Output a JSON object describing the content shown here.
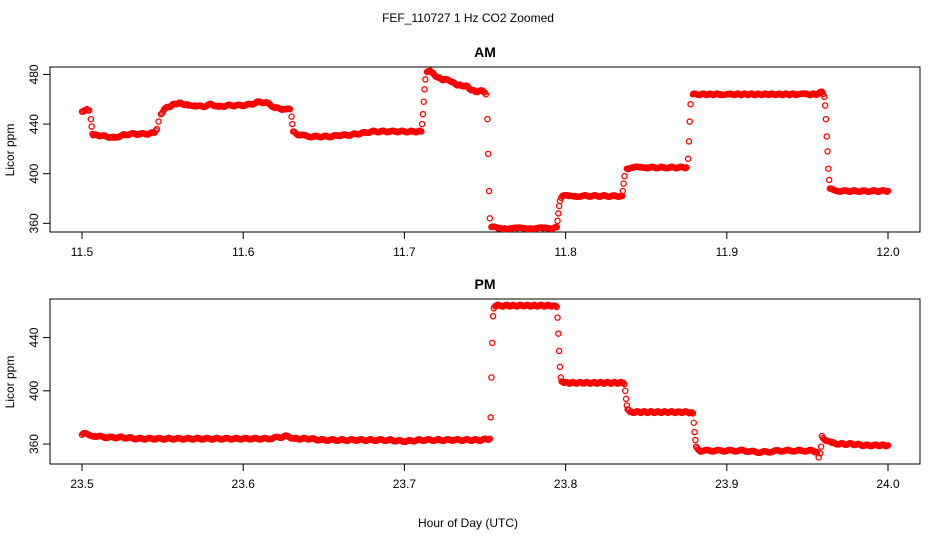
{
  "figure": {
    "title": "FEF_110727  1 Hz CO2 Zoomed",
    "xlabel": "Hour of Day (UTC)"
  },
  "chart_data": [
    {
      "type": "scatter",
      "title": "AM",
      "ylabel": "Licor ppm",
      "xlim": [
        11.5,
        12.0
      ],
      "ylim": [
        353,
        486
      ],
      "xticks": [
        11.5,
        11.6,
        11.7,
        11.8,
        11.9,
        12.0
      ],
      "xtick_labels": [
        "11.5",
        "11.6",
        "11.7",
        "11.8",
        "11.9",
        "12.0"
      ],
      "yticks": [
        360,
        400,
        440,
        480
      ],
      "ytick_labels": [
        "360",
        "400",
        "440",
        "480"
      ],
      "grid": false,
      "legend": "none",
      "marker": "open-circle",
      "series": [
        {
          "color": "#ff0000",
          "points": [
            [
              11.5,
              450
            ],
            [
              11.5015,
              451
            ],
            [
              11.503,
              452
            ],
            [
              11.5045,
              451
            ],
            [
              11.5055,
              444
            ],
            [
              11.506,
              438
            ],
            [
              11.5065,
              432
            ],
            [
              11.507,
              431
            ],
            [
              11.51,
              431
            ],
            [
              11.515,
              430
            ],
            [
              11.52,
              429
            ],
            [
              11.525,
              431
            ],
            [
              11.53,
              432
            ],
            [
              11.535,
              432
            ],
            [
              11.54,
              432
            ],
            [
              11.545,
              433
            ],
            [
              11.5465,
              436
            ],
            [
              11.5475,
              442
            ],
            [
              11.549,
              448
            ],
            [
              11.551,
              452
            ],
            [
              11.554,
              454
            ],
            [
              11.557,
              456
            ],
            [
              11.56,
              457
            ],
            [
              11.563,
              456
            ],
            [
              11.566,
              455
            ],
            [
              11.57,
              455
            ],
            [
              11.575,
              454
            ],
            [
              11.58,
              456
            ],
            [
              11.585,
              454
            ],
            [
              11.59,
              455
            ],
            [
              11.595,
              455
            ],
            [
              11.6,
              455
            ],
            [
              11.605,
              456
            ],
            [
              11.61,
              458
            ],
            [
              11.615,
              457
            ],
            [
              11.62,
              453
            ],
            [
              11.625,
              452
            ],
            [
              11.629,
              452
            ],
            [
              11.63,
              446
            ],
            [
              11.6305,
              440
            ],
            [
              11.631,
              434
            ],
            [
              11.633,
              432
            ],
            [
              11.636,
              431
            ],
            [
              11.64,
              430
            ],
            [
              11.645,
              430
            ],
            [
              11.65,
              430
            ],
            [
              11.655,
              430
            ],
            [
              11.66,
              431
            ],
            [
              11.665,
              431
            ],
            [
              11.67,
              432
            ],
            [
              11.675,
              433
            ],
            [
              11.68,
              434
            ],
            [
              11.685,
              434
            ],
            [
              11.69,
              434
            ],
            [
              11.695,
              434
            ],
            [
              11.7,
              434
            ],
            [
              11.705,
              434
            ],
            [
              11.7105,
              434
            ],
            [
              11.711,
              440
            ],
            [
              11.7115,
              448
            ],
            [
              11.712,
              458
            ],
            [
              11.7125,
              468
            ],
            [
              11.713,
              476
            ],
            [
              11.714,
              482
            ],
            [
              11.716,
              483
            ],
            [
              11.718,
              481
            ],
            [
              11.72,
              478
            ],
            [
              11.723,
              476
            ],
            [
              11.726,
              476
            ],
            [
              11.729,
              474
            ],
            [
              11.732,
              472
            ],
            [
              11.735,
              471
            ],
            [
              11.738,
              471
            ],
            [
              11.741,
              468
            ],
            [
              11.744,
              466
            ],
            [
              11.747,
              467
            ],
            [
              11.749,
              466
            ],
            [
              11.7505,
              464
            ],
            [
              11.7515,
              444
            ],
            [
              11.752,
              416
            ],
            [
              11.7525,
              386
            ],
            [
              11.753,
              364
            ],
            [
              11.754,
              357
            ],
            [
              11.758,
              356
            ],
            [
              11.762,
              356
            ],
            [
              11.766,
              356
            ],
            [
              11.77,
              356
            ],
            [
              11.774,
              356
            ],
            [
              11.778,
              356
            ],
            [
              11.782,
              356
            ],
            [
              11.786,
              356
            ],
            [
              11.79,
              356
            ],
            [
              11.7945,
              357
            ],
            [
              11.795,
              362
            ],
            [
              11.7955,
              368
            ],
            [
              11.796,
              374
            ],
            [
              11.7965,
              378
            ],
            [
              11.798,
              382
            ],
            [
              11.802,
              382
            ],
            [
              11.806,
              382
            ],
            [
              11.81,
              382
            ],
            [
              11.815,
              382
            ],
            [
              11.82,
              382
            ],
            [
              11.825,
              382
            ],
            [
              11.83,
              382
            ],
            [
              11.835,
              382
            ],
            [
              11.8355,
              386
            ],
            [
              11.836,
              392
            ],
            [
              11.8365,
              398
            ],
            [
              11.838,
              404
            ],
            [
              11.842,
              405
            ],
            [
              11.846,
              405
            ],
            [
              11.85,
              405
            ],
            [
              11.855,
              405
            ],
            [
              11.86,
              405
            ],
            [
              11.865,
              405
            ],
            [
              11.87,
              405
            ],
            [
              11.875,
              405
            ],
            [
              11.876,
              412
            ],
            [
              11.8765,
              426
            ],
            [
              11.877,
              442
            ],
            [
              11.8775,
              456
            ],
            [
              11.879,
              464
            ],
            [
              11.884,
              464
            ],
            [
              11.89,
              464
            ],
            [
              11.896,
              464
            ],
            [
              11.902,
              464
            ],
            [
              11.908,
              464
            ],
            [
              11.914,
              464
            ],
            [
              11.92,
              464
            ],
            [
              11.926,
              464
            ],
            [
              11.932,
              464
            ],
            [
              11.938,
              464
            ],
            [
              11.944,
              464
            ],
            [
              11.95,
              464
            ],
            [
              11.956,
              464
            ],
            [
              11.959,
              466
            ],
            [
              11.9605,
              462
            ],
            [
              11.961,
              455
            ],
            [
              11.9615,
              444
            ],
            [
              11.962,
              430
            ],
            [
              11.9625,
              418
            ],
            [
              11.963,
              404
            ],
            [
              11.9635,
              395
            ],
            [
              11.964,
              388
            ],
            [
              11.966,
              387
            ],
            [
              11.97,
              386
            ],
            [
              11.975,
              386
            ],
            [
              11.98,
              386
            ],
            [
              11.985,
              386
            ],
            [
              11.99,
              386
            ],
            [
              11.995,
              386
            ],
            [
              12.0,
              386
            ]
          ]
        }
      ]
    },
    {
      "type": "scatter",
      "title": "PM",
      "ylabel": "Licor ppm",
      "xlim": [
        23.5,
        24.0
      ],
      "ylim": [
        345,
        469
      ],
      "xticks": [
        23.5,
        23.6,
        23.7,
        23.8,
        23.9,
        24.0
      ],
      "xtick_labels": [
        "23.5",
        "23.6",
        "23.7",
        "23.8",
        "23.9",
        "24.0"
      ],
      "yticks": [
        360,
        400,
        440
      ],
      "ytick_labels": [
        "360",
        "400",
        "440"
      ],
      "grid": false,
      "legend": "none",
      "marker": "open-circle",
      "series": [
        {
          "color": "#ff0000",
          "points": [
            [
              23.5,
              367
            ],
            [
              23.502,
              368
            ],
            [
              23.504,
              367
            ],
            [
              23.508,
              366
            ],
            [
              23.515,
              365
            ],
            [
              23.525,
              365
            ],
            [
              23.535,
              364
            ],
            [
              23.545,
              364
            ],
            [
              23.555,
              364
            ],
            [
              23.565,
              364
            ],
            [
              23.575,
              364
            ],
            [
              23.585,
              364
            ],
            [
              23.595,
              364
            ],
            [
              23.605,
              364
            ],
            [
              23.615,
              364
            ],
            [
              23.622,
              365
            ],
            [
              23.627,
              366
            ],
            [
              23.632,
              364
            ],
            [
              23.64,
              364
            ],
            [
              23.65,
              363
            ],
            [
              23.66,
              363
            ],
            [
              23.67,
              363
            ],
            [
              23.68,
              363
            ],
            [
              23.69,
              363
            ],
            [
              23.7,
              362
            ],
            [
              23.71,
              363
            ],
            [
              23.72,
              363
            ],
            [
              23.73,
              363
            ],
            [
              23.74,
              363
            ],
            [
              23.748,
              363
            ],
            [
              23.753,
              364
            ],
            [
              23.7535,
              380
            ],
            [
              23.754,
              410
            ],
            [
              23.7545,
              436
            ],
            [
              23.755,
              456
            ],
            [
              23.7555,
              462
            ],
            [
              23.757,
              464
            ],
            [
              23.762,
              464
            ],
            [
              23.768,
              464
            ],
            [
              23.774,
              464
            ],
            [
              23.78,
              464
            ],
            [
              23.786,
              464
            ],
            [
              23.792,
              464
            ],
            [
              23.7945,
              463
            ],
            [
              23.795,
              455
            ],
            [
              23.7955,
              443
            ],
            [
              23.796,
              430
            ],
            [
              23.7965,
              418
            ],
            [
              23.797,
              410
            ],
            [
              23.7975,
              407
            ],
            [
              23.799,
              406
            ],
            [
              23.805,
              406
            ],
            [
              23.811,
              406
            ],
            [
              23.817,
              406
            ],
            [
              23.823,
              406
            ],
            [
              23.829,
              406
            ],
            [
              23.835,
              406
            ],
            [
              23.8365,
              405
            ],
            [
              23.837,
              400
            ],
            [
              23.8375,
              394
            ],
            [
              23.838,
              389
            ],
            [
              23.8385,
              386
            ],
            [
              23.84,
              384
            ],
            [
              23.846,
              384
            ],
            [
              23.852,
              384
            ],
            [
              23.858,
              384
            ],
            [
              23.864,
              384
            ],
            [
              23.87,
              384
            ],
            [
              23.876,
              384
            ],
            [
              23.879,
              383
            ],
            [
              23.8795,
              376
            ],
            [
              23.88,
              369
            ],
            [
              23.8805,
              363
            ],
            [
              23.881,
              358
            ],
            [
              23.883,
              355
            ],
            [
              23.89,
              355
            ],
            [
              23.897,
              355
            ],
            [
              23.904,
              355
            ],
            [
              23.911,
              355
            ],
            [
              23.918,
              354
            ],
            [
              23.925,
              354
            ],
            [
              23.932,
              355
            ],
            [
              23.939,
              355
            ],
            [
              23.946,
              355
            ],
            [
              23.953,
              355
            ],
            [
              23.956,
              354
            ],
            [
              23.957,
              350
            ],
            [
              23.958,
              353
            ],
            [
              23.9585,
              358
            ],
            [
              23.959,
              366
            ],
            [
              23.961,
              363
            ],
            [
              23.965,
              361
            ],
            [
              23.97,
              360
            ],
            [
              23.978,
              360
            ],
            [
              23.986,
              359
            ],
            [
              23.994,
              359
            ],
            [
              24.0,
              359
            ]
          ]
        }
      ]
    }
  ]
}
